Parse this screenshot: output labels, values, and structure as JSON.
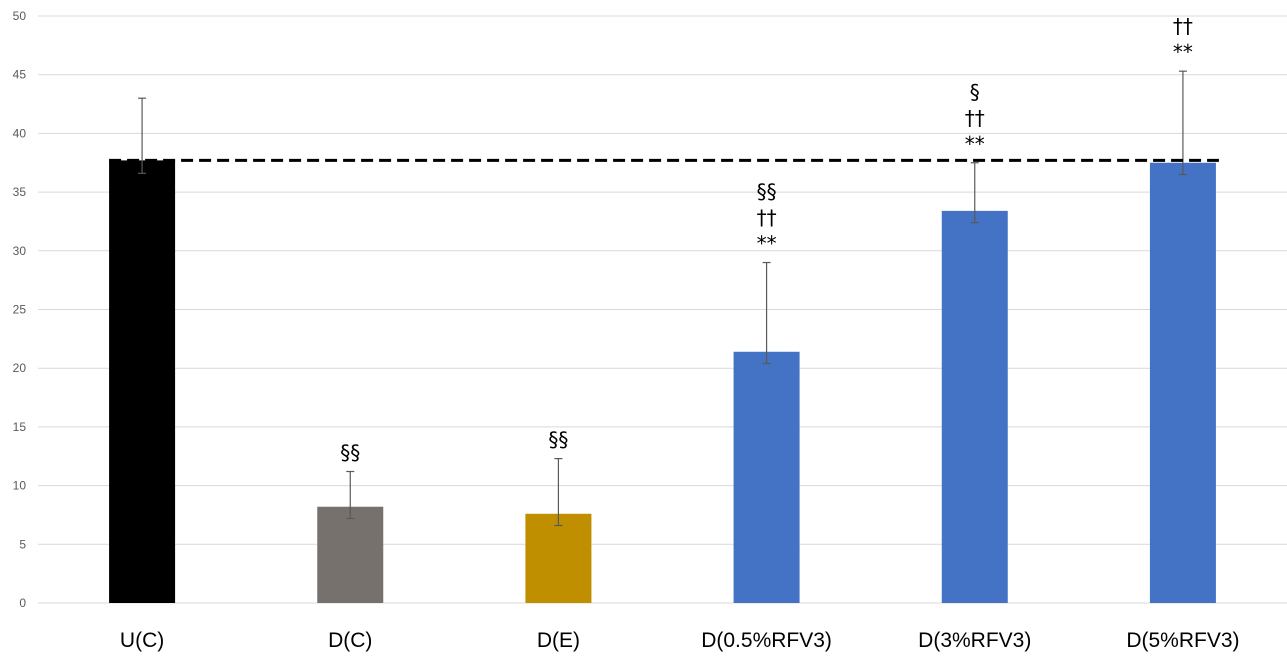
{
  "chart_data": {
    "type": "bar",
    "categories": [
      "U(C)",
      "D(C)",
      "D(E)",
      "D(0.5%RFV3)",
      "D(3%RFV3)",
      "D(5%RFV3)"
    ],
    "values": [
      37.7,
      8.2,
      7.6,
      21.4,
      33.4,
      37.5
    ],
    "error_upper": [
      43.0,
      11.2,
      12.3,
      29.0,
      37.5,
      45.3
    ],
    "error_lower": [
      36.6,
      7.2,
      6.6,
      20.4,
      32.4,
      36.5
    ],
    "bar_colors": [
      "#000000",
      "#76716d",
      "#bf8f00",
      "#4472c4",
      "#4472c4",
      "#4472c4"
    ],
    "annotations": [
      [],
      [
        "§§"
      ],
      [
        "§§"
      ],
      [
        "§§",
        "††",
        "**"
      ],
      [
        "§",
        "††",
        "**"
      ],
      [
        "††",
        "**"
      ]
    ],
    "reference_line": {
      "value": 37.7,
      "style": "dashed",
      "color": "#000000"
    },
    "yticks": [
      "0",
      "5",
      "10",
      "15",
      "20",
      "25",
      "30",
      "35",
      "40",
      "45",
      "50"
    ],
    "ylim": [
      0,
      50
    ],
    "grid": true,
    "gridline_color": "#d9d9d9",
    "legend": "none",
    "title": "",
    "xlabel": "",
    "ylabel": ""
  }
}
